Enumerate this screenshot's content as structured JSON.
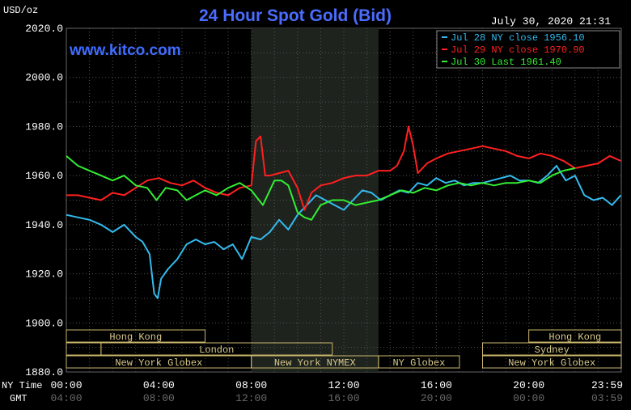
{
  "chart_data": {
    "type": "line",
    "title": "24 Hour Spot Gold (Bid)",
    "watermark": "www.kitco.com",
    "timestamp": "July 30, 2020 21:31",
    "y_unit_label": "USD/oz",
    "ylim": [
      1880,
      2020
    ],
    "y_ticks": [
      "2020.0",
      "2000.0",
      "1980.0",
      "1960.0",
      "1940.0",
      "1920.0",
      "1900.0",
      "1880.0"
    ],
    "x_row_labels": {
      "ny": "NY Time",
      "gmt": "GMT"
    },
    "x_ticks_ny": [
      "00:00",
      "04:00",
      "08:00",
      "12:00",
      "16:00",
      "20:00",
      "23:59"
    ],
    "x_ticks_gmt": [
      "04:00",
      "08:00",
      "12:00",
      "16:00",
      "20:00",
      "00:00",
      "03:59"
    ],
    "grid": true,
    "legend_placement": "top-right",
    "series": [
      {
        "name": "Jul 28 NY close 1956.10",
        "color": "#33bbee",
        "x": [
          0,
          0.5,
          1,
          1.5,
          2,
          2.5,
          3,
          3.3,
          3.6,
          3.8,
          3.95,
          4.1,
          4.4,
          4.8,
          5.2,
          5.6,
          6,
          6.4,
          6.8,
          7.2,
          7.6,
          8,
          8.4,
          8.8,
          9.2,
          9.6,
          10,
          10.4,
          10.8,
          11.2,
          11.6,
          12,
          12.4,
          12.8,
          13.2,
          13.6,
          14,
          14.4,
          14.8,
          15.2,
          15.6,
          16,
          16.4,
          16.8,
          17.2,
          17.6,
          18,
          18.4,
          18.8,
          19.2,
          19.6,
          20,
          20.4,
          20.8,
          21.2,
          21.6,
          22,
          22.4,
          22.8,
          23.2,
          23.6,
          23.98
        ],
        "y": [
          1944,
          1943,
          1942,
          1940,
          1937,
          1940,
          1935,
          1933,
          1928,
          1912,
          1910,
          1918,
          1922,
          1926,
          1932,
          1934,
          1932,
          1933,
          1930,
          1932,
          1926,
          1935,
          1934,
          1937,
          1942,
          1938,
          1944,
          1948,
          1952,
          1950,
          1948,
          1946,
          1950,
          1954,
          1953,
          1950,
          1952,
          1954,
          1953,
          1957,
          1956,
          1959,
          1957,
          1958,
          1956,
          1957,
          1957,
          1958,
          1959,
          1960,
          1958,
          1958,
          1957,
          1960,
          1964,
          1958,
          1960,
          1952,
          1950,
          1951,
          1948,
          1952
        ]
      },
      {
        "name": "Jul 29 NY close 1970.90",
        "color": "#ff2020",
        "x": [
          0,
          0.5,
          1,
          1.5,
          2,
          2.5,
          3,
          3.5,
          4,
          4.5,
          5,
          5.5,
          6,
          6.5,
          7,
          7.5,
          8,
          8.2,
          8.4,
          8.6,
          8.8,
          9.2,
          9.6,
          10,
          10.3,
          10.6,
          11,
          11.5,
          12,
          12.5,
          13,
          13.5,
          14,
          14.3,
          14.6,
          14.8,
          15,
          15.2,
          15.6,
          16,
          16.5,
          17,
          17.5,
          18,
          18.5,
          19,
          19.5,
          20,
          20.5,
          21,
          21.5,
          22,
          22.5,
          23,
          23.5,
          23.98
        ],
        "y": [
          1952,
          1952,
          1951,
          1950,
          1953,
          1952,
          1955,
          1958,
          1959,
          1957,
          1956,
          1958,
          1955,
          1953,
          1952,
          1955,
          1956,
          1974,
          1976,
          1960,
          1960,
          1961,
          1962,
          1955,
          1946,
          1953,
          1956,
          1957,
          1959,
          1960,
          1960,
          1962,
          1962,
          1964,
          1970,
          1980,
          1972,
          1961,
          1965,
          1967,
          1969,
          1970,
          1971,
          1972,
          1971,
          1970,
          1968,
          1967,
          1969,
          1968,
          1966,
          1963,
          1964,
          1965,
          1968,
          1966
        ]
      },
      {
        "name": "Jul 30 Last 1961.40",
        "color": "#33ee33",
        "x": [
          0,
          0.5,
          1,
          1.5,
          2,
          2.5,
          3,
          3.5,
          3.9,
          4.3,
          4.8,
          5.2,
          5.6,
          6,
          6.5,
          7,
          7.5,
          8,
          8.5,
          9,
          9.3,
          9.6,
          10,
          10.3,
          10.6,
          11,
          11.5,
          12,
          12.5,
          13,
          13.5,
          14,
          14.5,
          15,
          15.5,
          16,
          16.5,
          17,
          17.5,
          18,
          18.5,
          19,
          19.5,
          20,
          20.5,
          21,
          21.5,
          22
        ],
        "y": [
          1968,
          1964,
          1962,
          1960,
          1958,
          1960,
          1956,
          1955,
          1950,
          1955,
          1954,
          1950,
          1952,
          1954,
          1952,
          1955,
          1957,
          1954,
          1948,
          1958,
          1958,
          1956,
          1945,
          1943,
          1942,
          1948,
          1950,
          1950,
          1948,
          1949,
          1950,
          1952,
          1954,
          1953,
          1955,
          1954,
          1956,
          1957,
          1956,
          1957,
          1956,
          1957,
          1957,
          1958,
          1957,
          1960,
          1962,
          1963
        ]
      }
    ],
    "sessions": [
      {
        "label": "Hong Kong",
        "row": 0,
        "start": 0,
        "end": 6
      },
      {
        "label": "Hong Kong",
        "row": 0,
        "start": 20,
        "end": 24
      },
      {
        "label": "",
        "row": 1,
        "start": 0,
        "end": 1.5
      },
      {
        "label": "London",
        "row": 1,
        "start": 1.5,
        "end": 11.5
      },
      {
        "label": "Sydney",
        "row": 1,
        "start": 18,
        "end": 24
      },
      {
        "label": "New York Globex",
        "row": 2,
        "start": 0,
        "end": 8
      },
      {
        "label": "New York NYMEX",
        "row": 2,
        "start": 8,
        "end": 13.5
      },
      {
        "label": "NY Globex",
        "row": 2,
        "start": 13.5,
        "end": 17
      },
      {
        "label": "New York Globex",
        "row": 2,
        "start": 18,
        "end": 24
      }
    ],
    "shaded_region": [
      8,
      13.5
    ]
  }
}
